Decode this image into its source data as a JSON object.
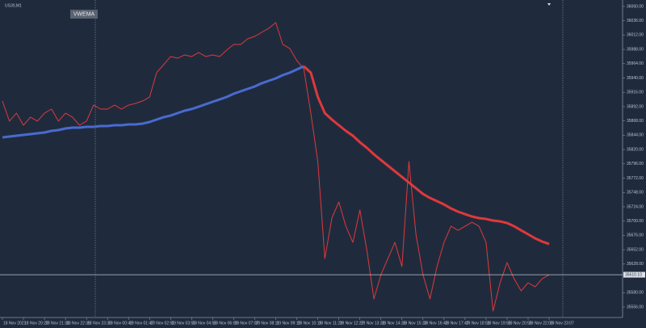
{
  "chart_data": {
    "type": "line",
    "symbol": "US30,M1",
    "indicator_label": "VWEMA",
    "categories": [
      "18 Nov 2021",
      null,
      null,
      "18 Nov 20:27",
      null,
      null,
      "18 Nov 21:31",
      null,
      null,
      "18 Nov 22:35",
      null,
      null,
      "18 Nov 23:39",
      null,
      null,
      "19 Nov 00:43",
      null,
      null,
      "19 Nov 01:47",
      null,
      null,
      "19 Nov 02:51",
      null,
      null,
      "19 Nov 03:55",
      null,
      null,
      "19 Nov 04:59",
      null,
      null,
      "19 Nov 06:03",
      null,
      null,
      "19 Nov 07:07",
      null,
      null,
      "19 Nov 08:11",
      null,
      null,
      "19 Nov 09:15",
      null,
      null,
      "19 Nov 10:19",
      null,
      null,
      "19 Nov 11:23",
      null,
      null,
      "19 Nov 12:27",
      null,
      null,
      "19 Nov 13:31",
      null,
      null,
      "19 Nov 14:35",
      null,
      null,
      "19 Nov 15:39",
      null,
      null,
      "19 Nov 16:43",
      null,
      null,
      "19 Nov 17:47",
      null,
      null,
      "19 Nov 18:51",
      null,
      null,
      "19 Nov 19:55",
      null,
      null,
      "19 Nov 20:59",
      null,
      null,
      "19 Nov 22:03",
      null,
      null,
      "19 Nov 23:07",
      null,
      null
    ],
    "series": [
      {
        "color": "#e0383c",
        "width": 1,
        "values": [
          35901.4,
          35867.6,
          35881.1,
          35860.8,
          35874.3,
          35867.6,
          35881.1,
          35887.9,
          35867.6,
          35881.1,
          35874.3,
          35860.8,
          35867.6,
          35894.6,
          35887.9,
          35887.9,
          35894.6,
          35887.9,
          35894.6,
          35897.4,
          35901.4,
          35908.2,
          35948.9,
          35962.4,
          35976.0,
          35973.2,
          35978.7,
          35976.0,
          35982.7,
          35976.0,
          35978.7,
          35976.0,
          35986.8,
          35996.3,
          35996.3,
          36005.8,
          36009.8,
          36016.6,
          36023.4,
          36032.9,
          35996.3,
          35989.5,
          35969.2,
          35955.6,
          35881.1,
          35799.8,
          35637.2,
          35705.0,
          35732.1,
          35691.4,
          35664.3,
          35718.5,
          35650.8,
          35569.5,
          35610.1,
          35637.2,
          35664.3,
          35623.7,
          35799.8,
          35677.9,
          35610.1,
          35569.5,
          35623.7,
          35664.3,
          35691.4,
          35684.6,
          35691.4,
          35698.2,
          35691.4,
          35664.3,
          35549.1,
          35596.6,
          35630.4,
          35603.3,
          35583.0,
          35596.6,
          35589.8,
          35603.3,
          35610.1,
          null,
          null
        ]
      },
      {
        "color": "#4a6ad0",
        "width": 3,
        "values": [
          35840.4,
          35841.8,
          35843.2,
          35844.5,
          35845.9,
          35847.2,
          35848.6,
          35851.3,
          35852.7,
          35855.4,
          35856.7,
          35856.7,
          35858.1,
          35858.1,
          35859.4,
          35859.4,
          35860.8,
          35860.8,
          35862.1,
          35862.1,
          35863.5,
          35866.2,
          35870.3,
          35874.3,
          35877.0,
          35881.1,
          35885.2,
          35887.9,
          35891.9,
          35896.0,
          35900.1,
          35904.1,
          35908.2,
          35913.6,
          35917.7,
          35921.8,
          35925.8,
          35931.2,
          35935.3,
          35939.4,
          35944.8,
          35948.9,
          35954.3,
          35959.7,
          null,
          null,
          null,
          null,
          null,
          null,
          null,
          null,
          null,
          null,
          null,
          null,
          null,
          null,
          null,
          null,
          null,
          null,
          null,
          null,
          null,
          null,
          null,
          null,
          null,
          null,
          null,
          null,
          null,
          null,
          null,
          null,
          null,
          null,
          null,
          null,
          null
        ]
      },
      {
        "color": "#e0383c",
        "width": 3,
        "values": [
          null,
          null,
          null,
          null,
          null,
          null,
          null,
          null,
          null,
          null,
          null,
          null,
          null,
          null,
          null,
          null,
          null,
          null,
          null,
          null,
          null,
          null,
          null,
          null,
          null,
          null,
          null,
          null,
          null,
          null,
          null,
          null,
          null,
          null,
          null,
          null,
          null,
          null,
          null,
          null,
          null,
          null,
          null,
          35959.7,
          35948.9,
          35908.2,
          35881.1,
          35870.3,
          35860.8,
          35851.3,
          35843.2,
          35832.3,
          35822.8,
          35812.0,
          35802.5,
          35793.0,
          35783.5,
          35774.1,
          35764.6,
          35755.1,
          35745.6,
          35738.8,
          35733.4,
          35728.0,
          35721.2,
          35715.8,
          35711.7,
          35707.7,
          35705.0,
          35703.6,
          35700.9,
          35699.5,
          35696.8,
          35691.4,
          35684.6,
          35677.9,
          35671.1,
          35665.7,
          35661.6,
          null,
          null
        ]
      }
    ],
    "current_price": {
      "value": 35610.1,
      "label": "35610.10"
    },
    "ylim": [
      35539.7,
      36070.8
    ],
    "yticks": [
      {
        "value": 36060,
        "label": "36060.00"
      },
      {
        "value": 36036,
        "label": "36036.00"
      },
      {
        "value": 36012,
        "label": "36012.00"
      },
      {
        "value": 35988,
        "label": "35988.00"
      },
      {
        "value": 35964,
        "label": "35964.00"
      },
      {
        "value": 35940,
        "label": "35940.00"
      },
      {
        "value": 35916,
        "label": "35916.00"
      },
      {
        "value": 35892,
        "label": "35892.00"
      },
      {
        "value": 35868,
        "label": "35868.00"
      },
      {
        "value": 35844,
        "label": "35844.00"
      },
      {
        "value": 35820,
        "label": "35820.00"
      },
      {
        "value": 35796,
        "label": "35796.00"
      },
      {
        "value": 35772,
        "label": "35772.00"
      },
      {
        "value": 35748,
        "label": "35748.00"
      },
      {
        "value": 35724,
        "label": "35724.00"
      },
      {
        "value": 35700,
        "label": "35700.00"
      },
      {
        "value": 35676,
        "label": "35676.00"
      },
      {
        "value": 35652,
        "label": "35652.00"
      },
      {
        "value": 35628,
        "label": "35628.00"
      },
      {
        "value": 35580,
        "label": "35580.00"
      },
      {
        "value": 35556,
        "label": "35556.00"
      }
    ],
    "grid": false
  }
}
